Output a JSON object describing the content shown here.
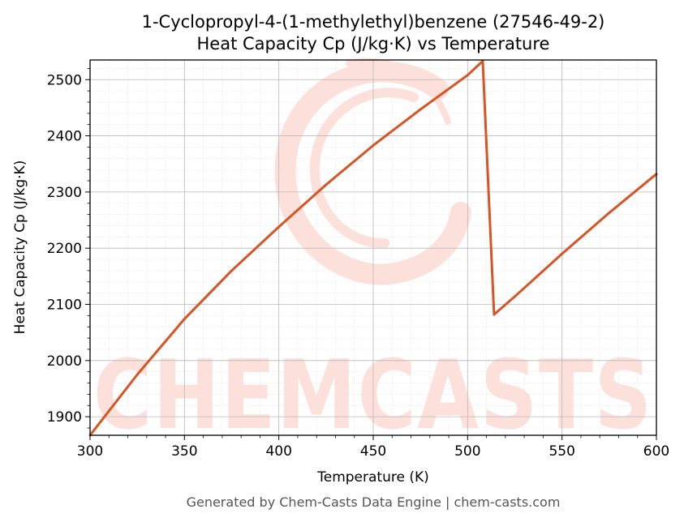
{
  "chart_data": {
    "type": "line",
    "title": "1-Cyclopropyl-4-(1-methylethyl)benzene (27546-49-2)",
    "subtitle": "Heat Capacity Cp (J/kg·K) vs Temperature",
    "xlabel": "Temperature (K)",
    "ylabel": "Heat Capacity Cp (J/kg·K)",
    "xlim": [
      300,
      600
    ],
    "ylim": [
      1867,
      2535
    ],
    "xticks": [
      300,
      350,
      400,
      450,
      500,
      550,
      600
    ],
    "yticks": [
      1900,
      2000,
      2100,
      2200,
      2300,
      2400,
      2500
    ],
    "grid": true,
    "series": [
      {
        "color": "#d95425",
        "x": [
          300,
          325,
          350,
          375,
          400,
          425,
          450,
          475,
          500,
          508,
          514,
          525,
          550,
          575,
          600
        ],
        "y": [
          1867,
          1975,
          2074,
          2160,
          2238,
          2313,
          2383,
          2447,
          2508,
          2533,
          2082,
          2114,
          2190,
          2263,
          2332
        ]
      }
    ]
  },
  "watermark": {
    "text": "CHEMCASTS"
  },
  "footer": "Generated by Chem-Casts Data Engine | chem-casts.com"
}
